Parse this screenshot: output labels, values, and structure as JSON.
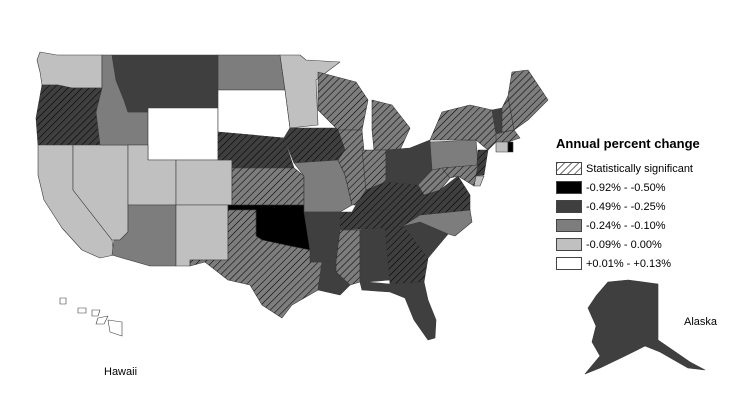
{
  "legend": {
    "title": "Annual percent change",
    "items": [
      {
        "key": "sig",
        "label": "Statistically significant",
        "color": "#ffffff",
        "pattern": "hatch"
      },
      {
        "key": "c1",
        "label": "-0.92% - -0.50%",
        "color": "#000000"
      },
      {
        "key": "c2",
        "label": "-0.49% - -0.25%",
        "color": "#3f3f3f"
      },
      {
        "key": "c3",
        "label": "-0.24% - -0.10%",
        "color": "#7d7d7d"
      },
      {
        "key": "c4",
        "label": "-0.09% - 0.00%",
        "color": "#c0c0c0"
      },
      {
        "key": "c5",
        "label": "+0.01% - +0.13%",
        "color": "#ffffff"
      }
    ]
  },
  "insets": {
    "alaska": "Alaska",
    "hawaii": "Hawaii"
  },
  "states": [
    {
      "id": "WA",
      "cls": "c4",
      "sig": false
    },
    {
      "id": "OR",
      "cls": "c2",
      "sig": true
    },
    {
      "id": "CA",
      "cls": "c4",
      "sig": false
    },
    {
      "id": "ID",
      "cls": "c3",
      "sig": false
    },
    {
      "id": "NV",
      "cls": "c4",
      "sig": false
    },
    {
      "id": "UT",
      "cls": "c4",
      "sig": false
    },
    {
      "id": "AZ",
      "cls": "c3",
      "sig": false
    },
    {
      "id": "MT",
      "cls": "c2",
      "sig": false
    },
    {
      "id": "WY",
      "cls": "c5",
      "sig": false
    },
    {
      "id": "CO",
      "cls": "c4",
      "sig": false
    },
    {
      "id": "NM",
      "cls": "c4",
      "sig": false
    },
    {
      "id": "ND",
      "cls": "c3",
      "sig": false
    },
    {
      "id": "SD",
      "cls": "c5",
      "sig": false
    },
    {
      "id": "NE",
      "cls": "c2",
      "sig": true
    },
    {
      "id": "KS",
      "cls": "c3",
      "sig": true
    },
    {
      "id": "OK",
      "cls": "c1",
      "sig": true
    },
    {
      "id": "TX",
      "cls": "c3",
      "sig": true
    },
    {
      "id": "MN",
      "cls": "c4",
      "sig": false
    },
    {
      "id": "IA",
      "cls": "c2",
      "sig": true
    },
    {
      "id": "MO",
      "cls": "c3",
      "sig": false
    },
    {
      "id": "AR",
      "cls": "c2",
      "sig": false
    },
    {
      "id": "LA",
      "cls": "c2",
      "sig": false
    },
    {
      "id": "WI",
      "cls": "c3",
      "sig": true
    },
    {
      "id": "IL",
      "cls": "c3",
      "sig": true
    },
    {
      "id": "MI",
      "cls": "c3",
      "sig": true
    },
    {
      "id": "IN",
      "cls": "c3",
      "sig": true
    },
    {
      "id": "OH",
      "cls": "c2",
      "sig": false
    },
    {
      "id": "KY",
      "cls": "c2",
      "sig": true
    },
    {
      "id": "TN",
      "cls": "c2",
      "sig": true
    },
    {
      "id": "MS",
      "cls": "c3",
      "sig": true
    },
    {
      "id": "AL",
      "cls": "c2",
      "sig": false
    },
    {
      "id": "GA",
      "cls": "c2",
      "sig": true
    },
    {
      "id": "FL",
      "cls": "c2",
      "sig": false
    },
    {
      "id": "SC",
      "cls": "c2",
      "sig": false
    },
    {
      "id": "NC",
      "cls": "c3",
      "sig": false
    },
    {
      "id": "VA",
      "cls": "c2",
      "sig": true
    },
    {
      "id": "WV",
      "cls": "c3",
      "sig": true
    },
    {
      "id": "PA",
      "cls": "c3",
      "sig": false
    },
    {
      "id": "NY",
      "cls": "c3",
      "sig": true
    },
    {
      "id": "VT",
      "cls": "c2",
      "sig": false
    },
    {
      "id": "NH",
      "cls": "c3",
      "sig": true
    },
    {
      "id": "ME",
      "cls": "c3",
      "sig": true
    },
    {
      "id": "MA",
      "cls": "c3",
      "sig": true
    },
    {
      "id": "CT",
      "cls": "c4",
      "sig": false
    },
    {
      "id": "RI",
      "cls": "c1",
      "sig": false
    },
    {
      "id": "NJ",
      "cls": "c2",
      "sig": true
    },
    {
      "id": "DE",
      "cls": "c4",
      "sig": false
    },
    {
      "id": "MD",
      "cls": "c3",
      "sig": true
    },
    {
      "id": "AK",
      "cls": "c2",
      "sig": false
    },
    {
      "id": "HI",
      "cls": "c5",
      "sig": false
    }
  ]
}
